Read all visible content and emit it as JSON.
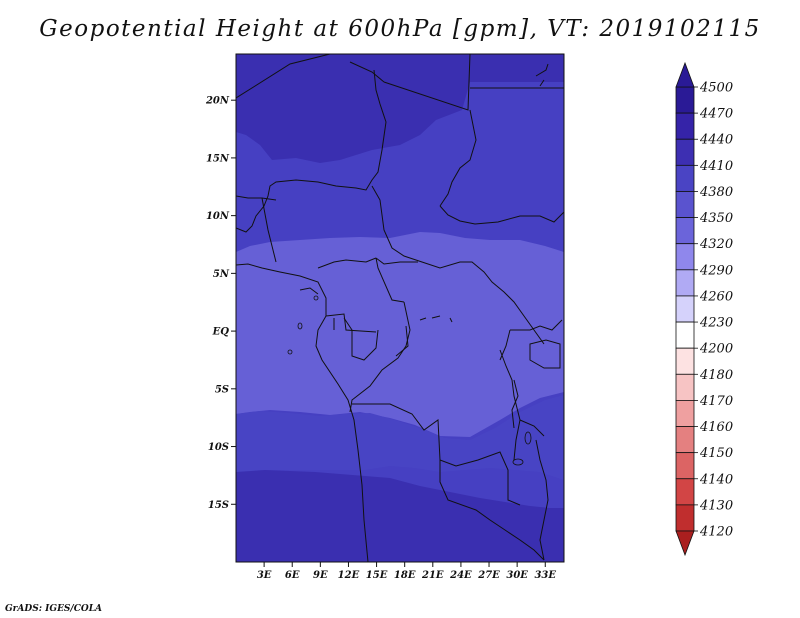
{
  "title": "Geopotential Height at 600hPa [gpm], VT: 2019102115",
  "credit": "GrADS: IGES/COLA",
  "map": {
    "variable": "Geopotential Height",
    "level": "600hPa",
    "units": "gpm",
    "valid_time": "2019102115",
    "lon_range": [
      0,
      35
    ],
    "lat_range": [
      -20,
      24
    ],
    "lat_ticks": [
      {
        "value": 20,
        "label": "20N"
      },
      {
        "value": 15,
        "label": "15N"
      },
      {
        "value": 10,
        "label": "10N"
      },
      {
        "value": 5,
        "label": "5N"
      },
      {
        "value": 0,
        "label": "EQ"
      },
      {
        "value": -5,
        "label": "5S"
      },
      {
        "value": -10,
        "label": "10S"
      },
      {
        "value": -15,
        "label": "15S"
      }
    ],
    "lon_ticks": [
      {
        "value": 3,
        "label": "3E"
      },
      {
        "value": 6,
        "label": "6E"
      },
      {
        "value": 9,
        "label": "9E"
      },
      {
        "value": 12,
        "label": "12E"
      },
      {
        "value": 15,
        "label": "15E"
      },
      {
        "value": 18,
        "label": "18E"
      },
      {
        "value": 21,
        "label": "21E"
      },
      {
        "value": 24,
        "label": "24E"
      },
      {
        "value": 27,
        "label": "27E"
      },
      {
        "value": 30,
        "label": "30E"
      },
      {
        "value": 33,
        "label": "33E"
      }
    ],
    "shaded_bands": [
      {
        "level": 4440,
        "color": "#3a2fb0",
        "region": "north Sahel"
      },
      {
        "level": 4410,
        "color": "#4a44c4",
        "region": "north Africa"
      },
      {
        "level": 4380,
        "color": "#665dd6",
        "region": "equatorial belt"
      },
      {
        "level": 4410,
        "color": "#4a44c4",
        "region": "southern Africa"
      },
      {
        "level": 4440,
        "color": "#3a2fb0",
        "region": "far south"
      }
    ]
  },
  "colorbar": {
    "levels": [
      {
        "label": "4500",
        "color": "#2a1a96"
      },
      {
        "label": "4470",
        "color": "#3523a8"
      },
      {
        "label": "4440",
        "color": "#3d2fb2"
      },
      {
        "label": "4410",
        "color": "#4a44c4"
      },
      {
        "label": "4380",
        "color": "#5a53cf"
      },
      {
        "label": "4350",
        "color": "#6b64da"
      },
      {
        "label": "4320",
        "color": "#8f87ec"
      },
      {
        "label": "4290",
        "color": "#b0aaf4"
      },
      {
        "label": "4260",
        "color": "#d5d2fb"
      },
      {
        "label": "4230",
        "color": "#ffffff"
      },
      {
        "label": "4200",
        "color": "#fde2e2"
      },
      {
        "label": "4180",
        "color": "#f7c4c4"
      },
      {
        "label": "4170",
        "color": "#efa0a0"
      },
      {
        "label": "4160",
        "color": "#e48080"
      },
      {
        "label": "4150",
        "color": "#dc6464"
      },
      {
        "label": "4140",
        "color": "#d24545"
      },
      {
        "label": "4130",
        "color": "#c02e2e"
      },
      {
        "label": "4120",
        "color": "#aa1f1f"
      }
    ]
  }
}
